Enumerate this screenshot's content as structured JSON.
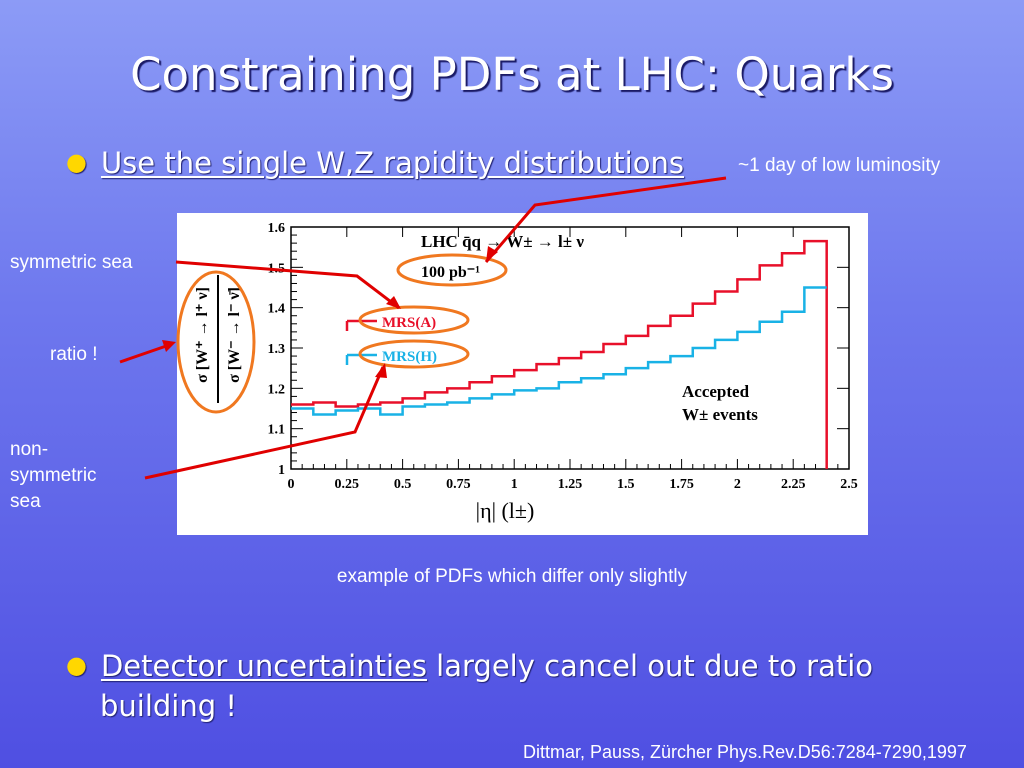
{
  "slide": {
    "title": "Constraining PDFs at LHC: Quarks",
    "bullet1": "Use the single W,Z rapidity distributions",
    "bullet2_underlined": "Detector uncertainties",
    "bullet2_rest_line1": " largely cancel out due to ratio",
    "bullet2_rest_line2": "building !",
    "annotations": {
      "luminosity": "~1 day of low luminosity",
      "symmetric_sea": "symmetric sea",
      "ratio": "ratio !",
      "non_symmetric_sea": [
        "non-",
        "symmetric",
        "sea"
      ],
      "example": "example of PDFs which differ only slightly",
      "reference": "Dittmar, Pauss, Zürcher Phys.Rev.D56:7284-7290,1997"
    },
    "colors": {
      "bullet_dot": "#ffd700",
      "arrows": "#e00000",
      "ellipses": "#f07820",
      "mrs_a": "#e8102a",
      "mrs_h": "#19b2e6"
    }
  },
  "chart_data": {
    "type": "line",
    "step": true,
    "title": "LHC  q̄q → W± → l± ν",
    "luminosity_label": "100 pb⁻¹",
    "annotation": [
      "Accepted",
      "W± events"
    ],
    "xlabel": "|η| (l±)",
    "ylabel_numerator": "σ [W⁺ → l⁺ ν]",
    "ylabel_denominator": "σ [W⁻ → l⁻ ν̄]",
    "xlim": [
      0,
      2.5
    ],
    "ylim": [
      1.0,
      1.6
    ],
    "xticks": [
      "0",
      "0.25",
      "0.5",
      "0.75",
      "1",
      "1.25",
      "1.5",
      "1.75",
      "2",
      "2.25",
      "2.5"
    ],
    "yticks": [
      "1",
      "1.1",
      "1.2",
      "1.3",
      "1.4",
      "1.5",
      "1.6"
    ],
    "bin_edges": [
      0,
      0.1,
      0.2,
      0.3,
      0.4,
      0.5,
      0.6,
      0.7,
      0.8,
      0.9,
      1.0,
      1.1,
      1.2,
      1.3,
      1.4,
      1.5,
      1.6,
      1.7,
      1.8,
      1.9,
      2.0,
      2.1,
      2.2,
      2.3,
      2.4
    ],
    "series": [
      {
        "name": "MRS(A)",
        "values": [
          1.16,
          1.165,
          1.155,
          1.16,
          1.165,
          1.175,
          1.19,
          1.2,
          1.215,
          1.23,
          1.245,
          1.26,
          1.275,
          1.29,
          1.31,
          1.33,
          1.355,
          1.38,
          1.41,
          1.44,
          1.47,
          1.505,
          1.535,
          1.565
        ]
      },
      {
        "name": "MRS(H)",
        "values": [
          1.15,
          1.135,
          1.145,
          1.15,
          1.135,
          1.155,
          1.16,
          1.165,
          1.175,
          1.185,
          1.195,
          1.2,
          1.215,
          1.225,
          1.235,
          1.25,
          1.265,
          1.28,
          1.3,
          1.32,
          1.34,
          1.365,
          1.39,
          1.45
        ]
      }
    ]
  }
}
